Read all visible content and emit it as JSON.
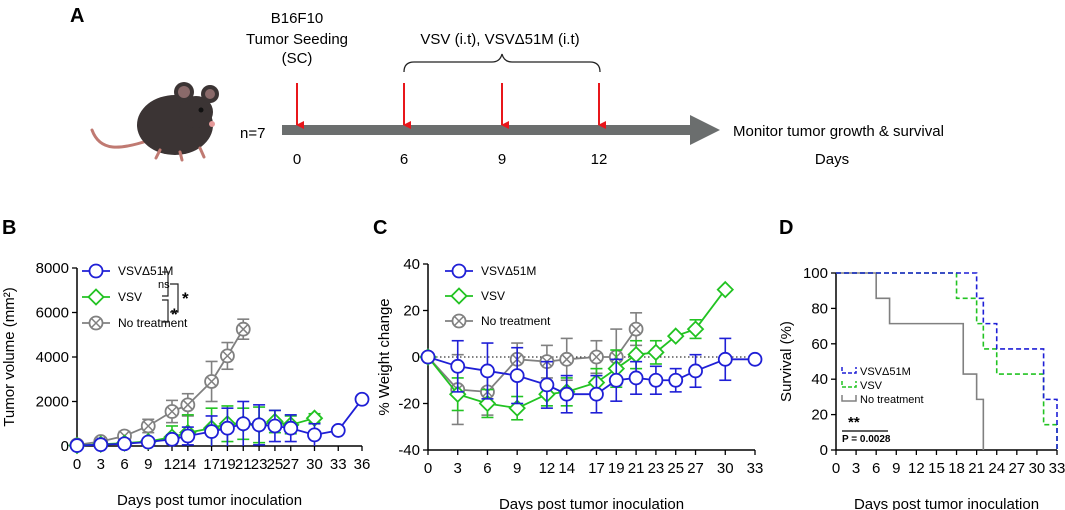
{
  "panel_a": {
    "letter": "A",
    "cell_line": "B16F10",
    "seeding_line1": "Tumor Seeding",
    "seeding_line2": "(SC)",
    "treatment_label": "VSV (i.t), VSVΔ51M (i.t)",
    "n_label": "n=7",
    "days": [
      "0",
      "6",
      "9",
      "12"
    ],
    "monitor_label": "Monitor tumor growth & survival",
    "days_label": "Days"
  },
  "colors": {
    "vsv_d51m": "#1f1fd6",
    "vsv": "#22c322",
    "no_treatment": "#808080",
    "injection_arrow": "#e8161b",
    "timeline_arrow": "#6b6e6e",
    "mouse": "#3b3434"
  },
  "chart_data": [
    {
      "panel": "B",
      "type": "line",
      "title": "",
      "xlabel": "Days post tumor inoculation",
      "ylabel": "Tumor volume (mm²)",
      "xlim": [
        0,
        36
      ],
      "ylim": [
        0,
        8000
      ],
      "xticks": [
        0,
        3,
        6,
        9,
        12,
        14,
        17,
        19,
        21,
        23,
        25,
        27,
        30,
        33,
        36
      ],
      "yticks": [
        0,
        2000,
        4000,
        6000,
        8000
      ],
      "reference_line_y": 0,
      "legend": "top-left",
      "annotations": [
        {
          "text": "ns",
          "between": [
            "VSVΔ51M",
            "VSV"
          ]
        },
        {
          "text": "*",
          "between": [
            "VSV",
            "No treatment"
          ]
        },
        {
          "text": "*",
          "between": [
            "VSVΔ51M",
            "No treatment"
          ]
        }
      ],
      "series": [
        {
          "name": "VSVΔ51M",
          "marker": "circle",
          "color": "#1f1fd6",
          "x": [
            0,
            3,
            6,
            9,
            12,
            14,
            17,
            19,
            21,
            23,
            25,
            27,
            30,
            33,
            36
          ],
          "y": [
            20,
            60,
            100,
            180,
            300,
            450,
            650,
            800,
            1000,
            950,
            900,
            800,
            500,
            700,
            2100
          ],
          "err": [
            20,
            40,
            60,
            80,
            200,
            400,
            700,
            900,
            1000,
            900,
            700,
            600,
            500,
            0,
            0
          ]
        },
        {
          "name": "VSV",
          "marker": "diamond",
          "color": "#22c322",
          "x": [
            0,
            3,
            6,
            9,
            12,
            14,
            17,
            19,
            21,
            23,
            25,
            27,
            30
          ],
          "y": [
            20,
            80,
            130,
            200,
            400,
            600,
            800,
            1000,
            1000,
            950,
            1100,
            950,
            1250
          ],
          "err": [
            20,
            50,
            80,
            100,
            500,
            800,
            900,
            800,
            700,
            800,
            500,
            400,
            200
          ]
        },
        {
          "name": "No treatment",
          "marker": "circle-x",
          "color": "#808080",
          "x": [
            0,
            3,
            6,
            9,
            12,
            14,
            17,
            19,
            21
          ],
          "y": [
            50,
            200,
            450,
            900,
            1550,
            1850,
            2900,
            4050,
            5250
          ],
          "err": [
            30,
            100,
            200,
            300,
            500,
            500,
            900,
            600,
            450
          ]
        }
      ]
    },
    {
      "panel": "C",
      "type": "line",
      "title": "",
      "xlabel": "Days post tumor inoculation",
      "ylabel": "% Weight change",
      "xlim": [
        0,
        33
      ],
      "ylim": [
        -40,
        40
      ],
      "xticks": [
        0,
        3,
        6,
        9,
        12,
        14,
        17,
        19,
        21,
        23,
        25,
        27,
        30,
        33
      ],
      "yticks": [
        -40,
        -20,
        0,
        20,
        40
      ],
      "reference_line_y": 0,
      "legend": "top-left",
      "series": [
        {
          "name": "VSVΔ51M",
          "marker": "circle",
          "color": "#1f1fd6",
          "x": [
            0,
            3,
            6,
            9,
            12,
            14,
            17,
            19,
            21,
            23,
            25,
            27,
            30,
            33
          ],
          "y": [
            0,
            -4,
            -6,
            -8,
            -12,
            -16,
            -16,
            -10,
            -9,
            -10,
            -10,
            -6,
            -1,
            -1
          ],
          "err": [
            0,
            11,
            12,
            12,
            10,
            8,
            8,
            9,
            7,
            6,
            5,
            7,
            9,
            0
          ]
        },
        {
          "name": "VSV",
          "marker": "diamond",
          "color": "#22c322",
          "x": [
            0,
            3,
            6,
            9,
            12,
            14,
            17,
            19,
            21,
            23,
            25,
            27,
            30
          ],
          "y": [
            0,
            -16,
            -20,
            -22,
            -16,
            -15,
            -11,
            -5,
            1,
            2,
            9,
            12,
            29
          ],
          "err": [
            0,
            7,
            6,
            5,
            5,
            6,
            6,
            8,
            6,
            5,
            0,
            4,
            0
          ]
        },
        {
          "name": "No treatment",
          "marker": "circle-x",
          "color": "#808080",
          "x": [
            0,
            3,
            6,
            9,
            12,
            14,
            17,
            19,
            21
          ],
          "y": [
            0,
            -14,
            -15,
            -1,
            -2,
            -1,
            0,
            0,
            12
          ],
          "err": [
            0,
            15,
            10,
            7,
            7,
            9,
            7,
            12,
            7
          ]
        }
      ]
    },
    {
      "panel": "D",
      "type": "step",
      "title": "",
      "xlabel": "Days post tumor inoculation",
      "ylabel": "Survival (%)",
      "xlim": [
        0,
        33
      ],
      "ylim": [
        0,
        100
      ],
      "xticks": [
        0,
        3,
        6,
        9,
        12,
        15,
        18,
        21,
        24,
        27,
        30,
        33
      ],
      "yticks": [
        0,
        20,
        40,
        60,
        80,
        100
      ],
      "legend": "center-left",
      "significance": {
        "stars": "**",
        "p_value": "P = 0.0028"
      },
      "series": [
        {
          "name": "VSVΔ51M",
          "color": "#1f1fd6",
          "dash": true,
          "x": [
            0,
            21,
            22,
            24,
            27,
            31,
            33
          ],
          "y": [
            100,
            85.7,
            71.4,
            57.1,
            57.1,
            28.6,
            0
          ]
        },
        {
          "name": "VSV",
          "color": "#22c322",
          "dash": true,
          "x": [
            0,
            18,
            21,
            22,
            24,
            31,
            32,
            33
          ],
          "y": [
            100,
            85.7,
            71.4,
            57.1,
            42.9,
            14.3,
            14.3,
            0
          ]
        },
        {
          "name": "No treatment",
          "color": "#808080",
          "dash": false,
          "x": [
            0,
            6,
            8,
            18,
            19,
            20,
            21,
            22
          ],
          "y": [
            100,
            85.7,
            71.4,
            71.4,
            42.9,
            42.9,
            28.6,
            0
          ]
        }
      ]
    }
  ]
}
